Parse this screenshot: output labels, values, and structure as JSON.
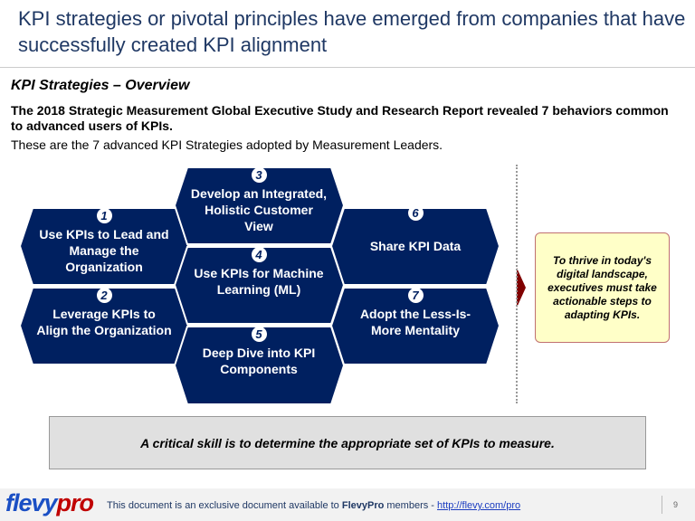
{
  "header": {
    "title": "KPI strategies or pivotal principles have emerged from companies that have successfully created KPI alignment"
  },
  "section": {
    "subtitle": "KPI Strategies – Overview",
    "lead": "The 2018 Strategic Measurement Global Executive Study and Research Report revealed 7 behaviors common to advanced users of KPIs.",
    "intro": "These are the 7 advanced KPI Strategies adopted by Measurement Leaders."
  },
  "strategies": [
    {
      "num": "1",
      "label": "Use KPIs to Lead and Manage the Organization"
    },
    {
      "num": "2",
      "label": "Leverage KPIs to Align the Organization"
    },
    {
      "num": "3",
      "label": "Develop an Integrated, Holistic Customer View"
    },
    {
      "num": "4",
      "label": "Use KPIs for Machine Learning (ML)"
    },
    {
      "num": "5",
      "label": "Deep Dive into KPI Components"
    },
    {
      "num": "6",
      "label": "Share KPI Data"
    },
    {
      "num": "7",
      "label": "Adopt the Less-Is-More Mentality"
    }
  ],
  "note": "To thrive in today's digital landscape, executives must take actionable steps to adapting KPIs.",
  "callout": "A critical skill is to determine the appropriate set of KPIs to measure.",
  "footer": {
    "logo_a": "flevy",
    "logo_b": "pro",
    "text_pre": "This document is an exclusive document available to ",
    "brand": "FlevyPro",
    "text_post": " members - ",
    "link": "http://flevy.com/pro",
    "page": "9"
  },
  "colors": {
    "hex": "#002060",
    "arrow": "#800000",
    "note_bg": "#ffffc8"
  }
}
